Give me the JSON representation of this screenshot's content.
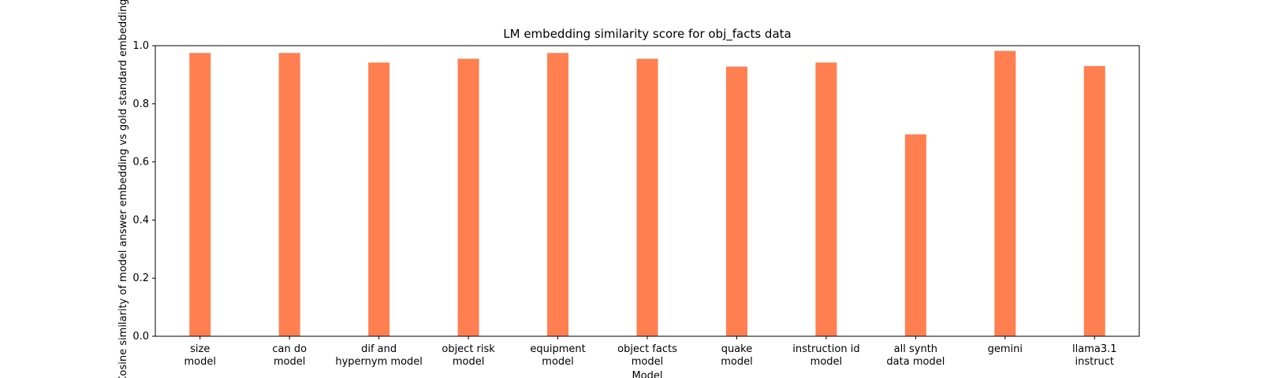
{
  "colors": {
    "bar": "#ff7f50",
    "axis": "#000000",
    "background": "#ffffff"
  },
  "chart_data": {
    "type": "bar",
    "title": "LM embedding similarity score for obj_facts data",
    "xlabel": "Model",
    "ylabel": "Cosine similarity of model answer embedding vs gold standard embedding",
    "ylim": [
      0,
      1.0
    ],
    "yticks": [
      "0.0",
      "0.2",
      "0.4",
      "0.6",
      "0.8",
      "1.0"
    ],
    "grid": false,
    "legend": "none",
    "categories": [
      [
        "size",
        "model"
      ],
      [
        "can do",
        "model"
      ],
      [
        "dif and",
        "hypernym model"
      ],
      [
        "object risk",
        "model"
      ],
      [
        "equipment",
        "model"
      ],
      [
        "object facts",
        "model"
      ],
      [
        "quake",
        "model"
      ],
      [
        "instruction id",
        "model"
      ],
      [
        "all synth",
        "data model"
      ],
      [
        "gemini"
      ],
      [
        "llama3.1",
        "instruct"
      ]
    ],
    "values": [
      0.975,
      0.975,
      0.942,
      0.955,
      0.975,
      0.955,
      0.928,
      0.942,
      0.695,
      0.982,
      0.93
    ]
  }
}
